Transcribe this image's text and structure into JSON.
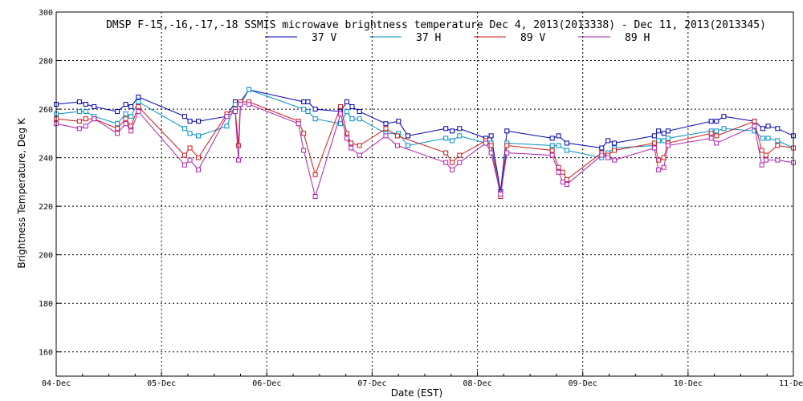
{
  "chart_data": {
    "type": "line",
    "title": "DMSP F-15,-16,-17,-18 SSMIS microwave brightness temperature Dec  4, 2013(2013338) - Dec 11, 2013(2013345)",
    "xlabel": "Date (EST)",
    "ylabel": "Brightness Temperature, Deg K",
    "xlim": [
      "04-Dec",
      "11-Dec"
    ],
    "ylim": [
      150,
      300
    ],
    "x_ticks": [
      "04-Dec",
      "05-Dec",
      "06-Dec",
      "07-Dec",
      "08-Dec",
      "09-Dec",
      "10-Dec",
      "11-Dec"
    ],
    "y_ticks": [
      160,
      180,
      200,
      220,
      240,
      260,
      280,
      300
    ],
    "grid": true,
    "legend_position": "top",
    "x_units_note": "x values are days elapsed since 04-Dec 00:00 EST",
    "series": [
      {
        "name": "37 V",
        "color": "#0000b0",
        "x": [
          0.0,
          0.22,
          0.28,
          0.36,
          0.58,
          0.66,
          0.71,
          0.78,
          1.22,
          1.27,
          1.35,
          1.62,
          1.7,
          1.75,
          1.83,
          2.35,
          2.39,
          2.46,
          2.7,
          2.76,
          2.81,
          2.88,
          3.13,
          3.25,
          3.34,
          3.7,
          3.76,
          3.83,
          4.08,
          4.13,
          4.22,
          4.28,
          4.71,
          4.77,
          4.85,
          5.18,
          5.24,
          5.3,
          5.68,
          5.72,
          5.77,
          5.81,
          6.22,
          6.27,
          6.34,
          6.63,
          6.71,
          6.76,
          6.85,
          7.0
        ],
        "y": [
          262,
          263,
          262,
          261,
          259,
          262,
          261,
          265,
          257,
          255,
          255,
          257,
          263,
          263,
          268,
          263,
          263,
          260,
          259,
          263,
          261,
          259,
          254,
          255,
          249,
          252,
          251,
          252,
          248,
          249,
          226,
          251,
          248,
          249,
          246,
          244,
          247,
          246,
          249,
          251,
          250,
          251,
          255,
          255,
          257,
          255,
          252,
          253,
          252,
          249
        ]
      },
      {
        "name": "37 H",
        "color": "#0090c8",
        "x": [
          0.0,
          0.22,
          0.28,
          0.36,
          0.58,
          0.66,
          0.71,
          0.78,
          1.22,
          1.27,
          1.35,
          1.62,
          1.7,
          1.75,
          1.83,
          2.35,
          2.39,
          2.46,
          2.7,
          2.76,
          2.81,
          2.88,
          3.13,
          3.25,
          3.34,
          3.7,
          3.76,
          3.83,
          4.08,
          4.13,
          4.22,
          4.28,
          4.71,
          4.77,
          4.85,
          5.18,
          5.24,
          5.3,
          5.68,
          5.72,
          5.77,
          5.81,
          6.22,
          6.27,
          6.34,
          6.63,
          6.71,
          6.76,
          6.85,
          7.0
        ],
        "y": [
          258,
          259,
          259,
          257,
          254,
          258,
          257,
          263,
          252,
          250,
          249,
          253,
          262,
          262,
          268,
          260,
          259,
          256,
          254,
          259,
          256,
          256,
          250,
          250,
          245,
          248,
          247,
          249,
          246,
          246,
          224,
          246,
          245,
          245,
          243,
          240,
          242,
          244,
          245,
          247,
          247,
          248,
          251,
          251,
          252,
          251,
          248,
          248,
          247,
          244
        ]
      },
      {
        "name": "89 V",
        "color": "#d01818",
        "x": [
          0.0,
          0.22,
          0.28,
          0.36,
          0.58,
          0.66,
          0.71,
          0.78,
          1.22,
          1.27,
          1.35,
          1.62,
          1.7,
          1.73,
          1.75,
          1.83,
          2.3,
          2.35,
          2.46,
          2.7,
          2.76,
          2.8,
          2.88,
          3.13,
          3.24,
          3.7,
          3.76,
          3.83,
          4.08,
          4.13,
          4.22,
          4.28,
          4.71,
          4.77,
          4.81,
          4.85,
          5.18,
          5.24,
          5.3,
          5.68,
          5.72,
          5.77,
          5.81,
          6.22,
          6.27,
          6.63,
          6.7,
          6.74,
          6.85,
          7.0
        ],
        "y": [
          256,
          255,
          256,
          256,
          252,
          256,
          253,
          261,
          241,
          244,
          240,
          258,
          260,
          245,
          263,
          263,
          255,
          250,
          233,
          261,
          250,
          246,
          245,
          252,
          249,
          242,
          238,
          241,
          247,
          245,
          224,
          245,
          243,
          236,
          234,
          231,
          242,
          241,
          243,
          246,
          239,
          240,
          246,
          250,
          249,
          255,
          243,
          241,
          245,
          244
        ]
      },
      {
        "name": "89 H",
        "color": "#b020b0",
        "x": [
          0.0,
          0.22,
          0.28,
          0.36,
          0.58,
          0.66,
          0.71,
          0.78,
          1.22,
          1.27,
          1.35,
          1.62,
          1.7,
          1.73,
          1.75,
          1.83,
          2.3,
          2.35,
          2.46,
          2.7,
          2.76,
          2.8,
          2.88,
          3.13,
          3.24,
          3.7,
          3.76,
          3.83,
          4.08,
          4.13,
          4.22,
          4.28,
          4.71,
          4.77,
          4.81,
          4.85,
          5.18,
          5.24,
          5.3,
          5.68,
          5.72,
          5.77,
          5.81,
          6.22,
          6.27,
          6.63,
          6.7,
          6.74,
          6.85,
          7.0
        ],
        "y": [
          254,
          252,
          253,
          256,
          250,
          254,
          251,
          259,
          237,
          239,
          235,
          257,
          259,
          239,
          262,
          262,
          254,
          243,
          224,
          258,
          248,
          244,
          241,
          249,
          245,
          238,
          235,
          238,
          246,
          242,
          225,
          242,
          241,
          234,
          230,
          229,
          241,
          240,
          239,
          244,
          235,
          236,
          245,
          248,
          246,
          253,
          237,
          239,
          239,
          238
        ]
      }
    ]
  }
}
